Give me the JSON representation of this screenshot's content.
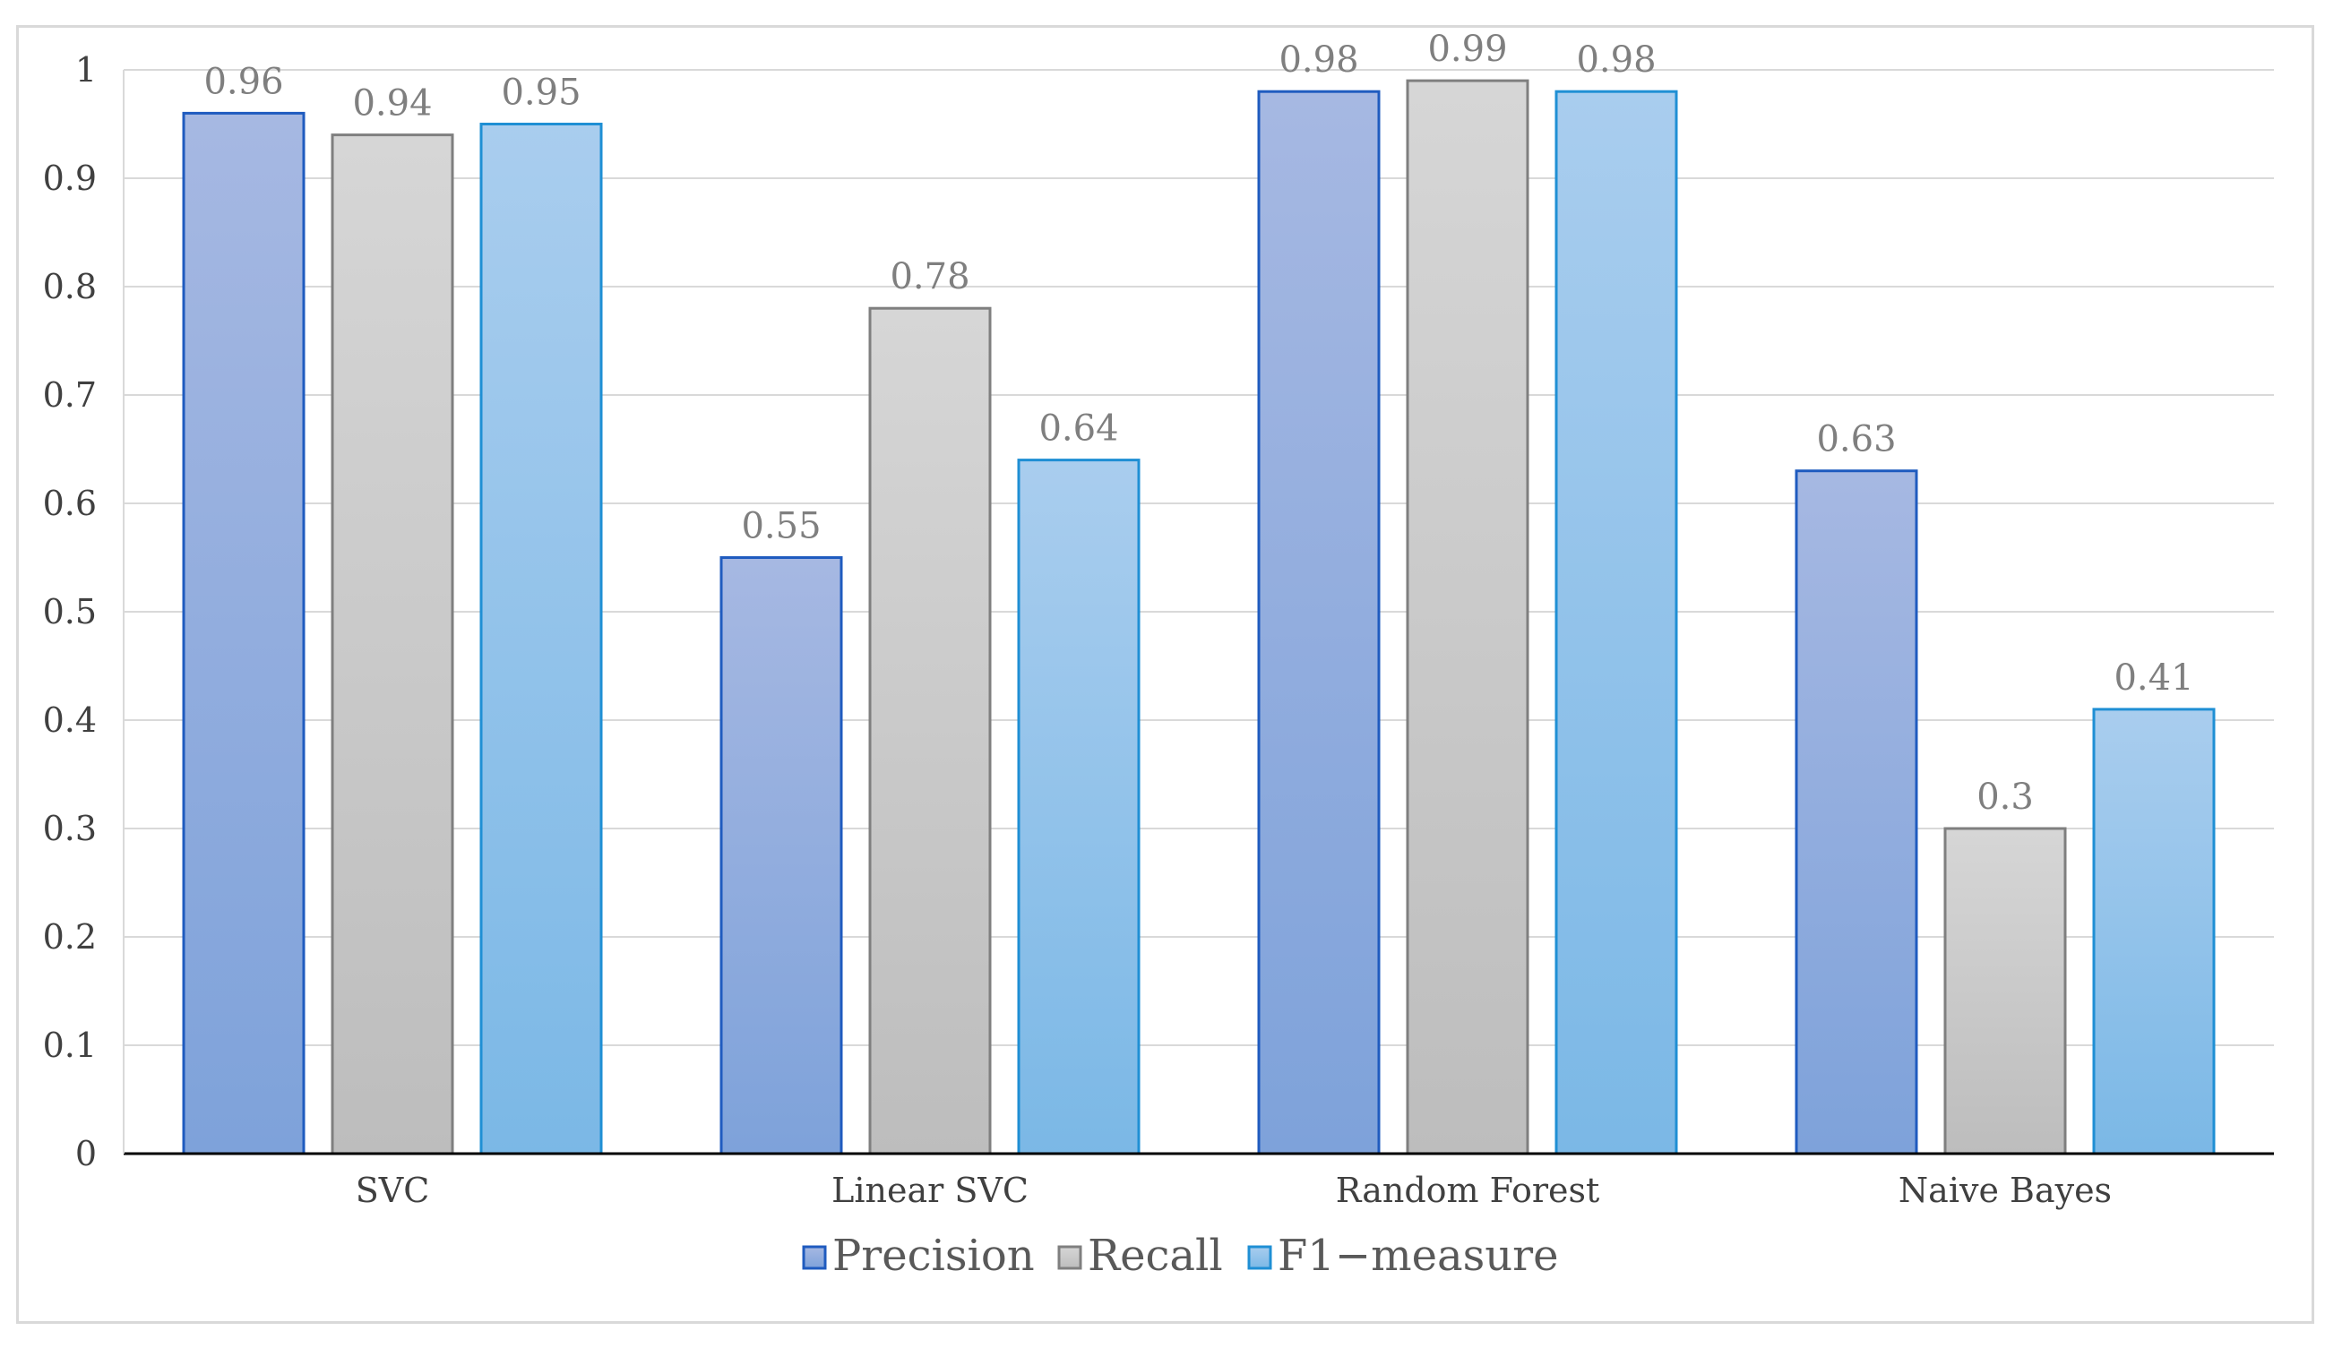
{
  "chart_data": {
    "type": "bar",
    "categories": [
      "SVC",
      "Linear SVC",
      "Random Forest",
      "Naive Bayes"
    ],
    "series": [
      {
        "name": "Precision",
        "values": [
          0.96,
          0.55,
          0.98,
          0.63
        ],
        "fill_top": "#a6b8e2",
        "fill_bottom": "#7ea2da",
        "stroke": "#1f5bbf"
      },
      {
        "name": "Recall",
        "values": [
          0.94,
          0.78,
          0.99,
          0.3
        ],
        "fill_top": "#d6d6d6",
        "fill_bottom": "#bdbdbd",
        "stroke": "#7f7f7f"
      },
      {
        "name": "F1-measure",
        "values": [
          0.95,
          0.64,
          0.98,
          0.41
        ],
        "fill_top": "#a9cdee",
        "fill_bottom": "#7bb8e6",
        "stroke": "#1f8fd4"
      }
    ],
    "data_labels": [
      [
        "0.96",
        "0.55",
        "0.98",
        "0.63"
      ],
      [
        "0.94",
        "0.78",
        "0.99",
        "0.3"
      ],
      [
        "0.95",
        "0.64",
        "0.98",
        "0.41"
      ]
    ],
    "y_ticks": [
      "0",
      "0.1",
      "0.2",
      "0.3",
      "0.4",
      "0.5",
      "0.6",
      "0.7",
      "0.8",
      "0.9",
      "1"
    ],
    "ylim": [
      0,
      1
    ],
    "title": "",
    "xlabel": "",
    "ylabel": "",
    "grid": true,
    "legend": "bottom-center",
    "legend_labels": [
      "Precision",
      "Recall",
      "F1−measure"
    ]
  },
  "colors": {
    "gridline": "#d9d9d9",
    "axis": "#000000",
    "frame": "#d9d9d9"
  }
}
